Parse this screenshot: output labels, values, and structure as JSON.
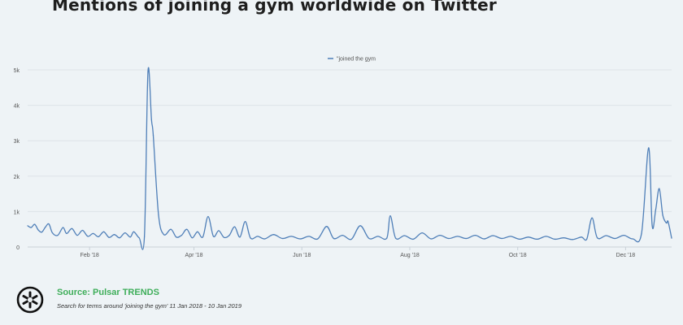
{
  "title": "Mentions of joining a gym worldwide on Twitter",
  "colors": {
    "line": "#4f7fb8",
    "grid": "#dde3e8",
    "source": "#3fae5a"
  },
  "chart_data": {
    "type": "line",
    "title": "Mentions of joining a gym worldwide on Twitter",
    "xlabel": "",
    "ylabel": "",
    "ylim": [
      0,
      5000
    ],
    "yticks": [
      0,
      1000,
      2000,
      3000,
      4000,
      5000
    ],
    "yticklabels": [
      "0",
      "1k",
      "2k",
      "3k",
      "4k",
      "5k"
    ],
    "xlim": [
      "2018-01-11",
      "2019-01-10"
    ],
    "xticks": [
      "2018-02-15",
      "2018-04-15",
      "2018-06-15",
      "2018-08-15",
      "2018-10-15",
      "2018-12-15"
    ],
    "xticklabels": [
      "Feb '18",
      "Apr '18",
      "Jun '18",
      "Aug '18",
      "Oct '18",
      "Dec '18"
    ],
    "grid": true,
    "legend": "top-center",
    "series": [
      {
        "name": "\"joined the gym",
        "points": [
          [
            "2018-01-11",
            600
          ],
          [
            "2018-01-13",
            550
          ],
          [
            "2018-01-15",
            640
          ],
          [
            "2018-01-17",
            480
          ],
          [
            "2018-01-19",
            420
          ],
          [
            "2018-01-21",
            560
          ],
          [
            "2018-01-23",
            650
          ],
          [
            "2018-01-25",
            400
          ],
          [
            "2018-01-28",
            330
          ],
          [
            "2018-01-31",
            550
          ],
          [
            "2018-02-02",
            380
          ],
          [
            "2018-02-05",
            520
          ],
          [
            "2018-02-08",
            330
          ],
          [
            "2018-02-11",
            470
          ],
          [
            "2018-02-14",
            300
          ],
          [
            "2018-02-17",
            380
          ],
          [
            "2018-02-20",
            290
          ],
          [
            "2018-02-23",
            430
          ],
          [
            "2018-02-26",
            270
          ],
          [
            "2018-03-01",
            350
          ],
          [
            "2018-03-04",
            260
          ],
          [
            "2018-03-07",
            400
          ],
          [
            "2018-03-10",
            280
          ],
          [
            "2018-03-12",
            430
          ],
          [
            "2018-03-15",
            260
          ],
          [
            "2018-03-18",
            290
          ],
          [
            "2018-03-20",
            4950
          ],
          [
            "2018-03-22",
            3600
          ],
          [
            "2018-03-23",
            3150
          ],
          [
            "2018-03-26",
            900
          ],
          [
            "2018-03-29",
            350
          ],
          [
            "2018-04-02",
            500
          ],
          [
            "2018-04-05",
            280
          ],
          [
            "2018-04-08",
            330
          ],
          [
            "2018-04-11",
            500
          ],
          [
            "2018-04-14",
            260
          ],
          [
            "2018-04-17",
            430
          ],
          [
            "2018-04-20",
            280
          ],
          [
            "2018-04-23",
            860
          ],
          [
            "2018-04-26",
            300
          ],
          [
            "2018-04-29",
            460
          ],
          [
            "2018-05-02",
            270
          ],
          [
            "2018-05-05",
            330
          ],
          [
            "2018-05-08",
            570
          ],
          [
            "2018-05-11",
            280
          ],
          [
            "2018-05-14",
            720
          ],
          [
            "2018-05-17",
            250
          ],
          [
            "2018-05-21",
            300
          ],
          [
            "2018-05-25",
            230
          ],
          [
            "2018-05-30",
            350
          ],
          [
            "2018-06-04",
            240
          ],
          [
            "2018-06-09",
            300
          ],
          [
            "2018-06-14",
            230
          ],
          [
            "2018-06-19",
            300
          ],
          [
            "2018-06-24",
            230
          ],
          [
            "2018-06-29",
            580
          ],
          [
            "2018-07-03",
            240
          ],
          [
            "2018-07-08",
            330
          ],
          [
            "2018-07-13",
            220
          ],
          [
            "2018-07-18",
            600
          ],
          [
            "2018-07-23",
            240
          ],
          [
            "2018-07-28",
            300
          ],
          [
            "2018-08-02",
            250
          ],
          [
            "2018-08-04",
            880
          ],
          [
            "2018-08-07",
            250
          ],
          [
            "2018-08-12",
            320
          ],
          [
            "2018-08-17",
            220
          ],
          [
            "2018-08-22",
            400
          ],
          [
            "2018-08-27",
            230
          ],
          [
            "2018-09-01",
            330
          ],
          [
            "2018-09-06",
            240
          ],
          [
            "2018-09-11",
            300
          ],
          [
            "2018-09-16",
            240
          ],
          [
            "2018-09-21",
            330
          ],
          [
            "2018-09-26",
            230
          ],
          [
            "2018-10-01",
            320
          ],
          [
            "2018-10-06",
            240
          ],
          [
            "2018-10-11",
            300
          ],
          [
            "2018-10-16",
            220
          ],
          [
            "2018-10-21",
            280
          ],
          [
            "2018-10-26",
            220
          ],
          [
            "2018-10-31",
            300
          ],
          [
            "2018-11-05",
            220
          ],
          [
            "2018-11-10",
            260
          ],
          [
            "2018-11-15",
            210
          ],
          [
            "2018-11-20",
            280
          ],
          [
            "2018-11-23",
            220
          ],
          [
            "2018-11-26",
            820
          ],
          [
            "2018-11-29",
            260
          ],
          [
            "2018-12-04",
            320
          ],
          [
            "2018-12-09",
            240
          ],
          [
            "2018-12-14",
            330
          ],
          [
            "2018-12-19",
            230
          ],
          [
            "2018-12-24",
            380
          ],
          [
            "2018-12-28",
            2800
          ],
          [
            "2018-12-30",
            600
          ],
          [
            "2019-01-01",
            1050
          ],
          [
            "2019-01-03",
            1650
          ],
          [
            "2019-01-05",
            900
          ],
          [
            "2019-01-07",
            680
          ],
          [
            "2019-01-08",
            720
          ],
          [
            "2019-01-10",
            250
          ]
        ]
      }
    ]
  },
  "footer": {
    "source": "Source: Pulsar TRENDS",
    "note": "Search for terms around 'joining the gym' 11 Jan 2018 - 10 Jan 2019"
  }
}
